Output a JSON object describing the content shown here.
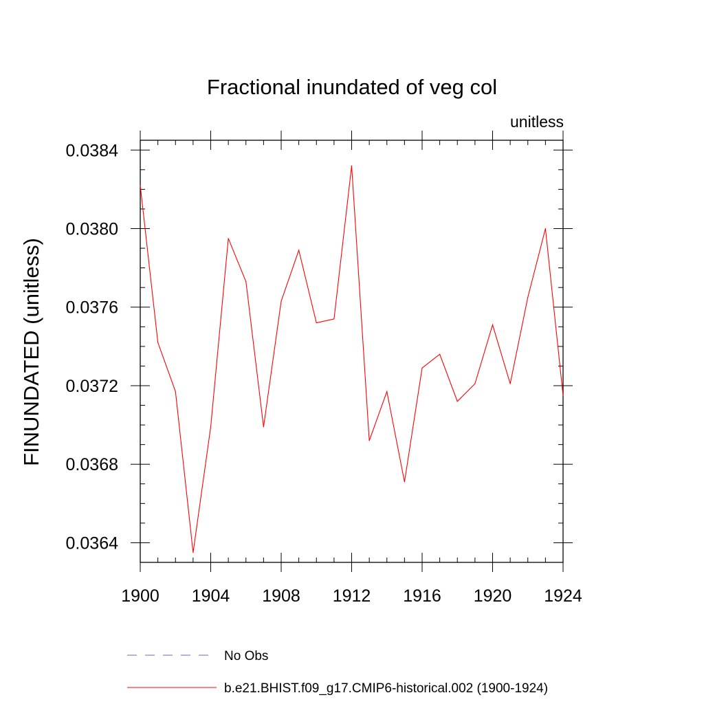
{
  "chart_data": {
    "type": "line",
    "title": "Fractional inundated of veg col",
    "units_label": "unitless",
    "xlabel": "",
    "ylabel": "FINUNDATED  (unitless)",
    "xlim": [
      1900,
      1924
    ],
    "ylim": [
      0.0363,
      0.03845
    ],
    "x_ticks": [
      1900,
      1904,
      1908,
      1912,
      1916,
      1920,
      1924
    ],
    "x_tick_labels": [
      "1900",
      "1904",
      "1908",
      "1912",
      "1916",
      "1920",
      "1924"
    ],
    "y_ticks": [
      0.0364,
      0.0368,
      0.0372,
      0.0376,
      0.038,
      0.0384
    ],
    "y_tick_labels": [
      "0.0364",
      "0.0368",
      "0.0372",
      "0.0376",
      "0.0380",
      "0.0384"
    ],
    "x_minor_step": 1,
    "y_minor_step": 0.0001,
    "grid": false,
    "legend_position": "bottom",
    "series": [
      {
        "name": "b.e21.BHIST.f09_g17.CMIP6-historical.002 (1900-1924)",
        "color": "#ff0000",
        "style": "solid",
        "x": [
          1900,
          1901,
          1902,
          1903,
          1904,
          1905,
          1906,
          1907,
          1908,
          1909,
          1910,
          1911,
          1912,
          1913,
          1914,
          1915,
          1916,
          1917,
          1918,
          1919,
          1920,
          1921,
          1922,
          1923,
          1924
        ],
        "values": [
          0.03822,
          0.03742,
          0.03717,
          0.03635,
          0.03699,
          0.03795,
          0.03773,
          0.03699,
          0.03763,
          0.03789,
          0.03752,
          0.03754,
          0.03832,
          0.03692,
          0.03717,
          0.03671,
          0.03729,
          0.03736,
          0.03712,
          0.03721,
          0.03751,
          0.03721,
          0.03765,
          0.038,
          0.03715
        ]
      }
    ],
    "legend": [
      {
        "label": "No Obs",
        "color": "#6666cc",
        "style": "dashed"
      },
      {
        "label": "b.e21.BHIST.f09_g17.CMIP6-historical.002 (1900-1924)",
        "color": "#ff0000",
        "style": "solid"
      }
    ]
  }
}
